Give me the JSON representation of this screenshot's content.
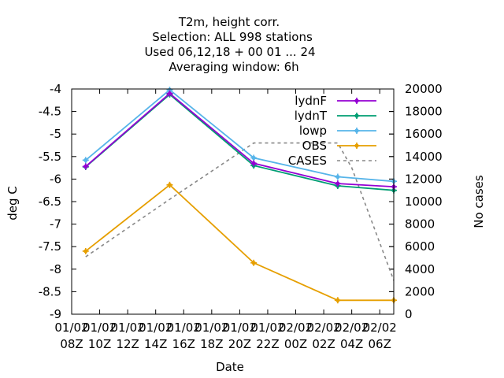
{
  "chart_data": {
    "type": "line",
    "title_lines": [
      "T2m, height corr.",
      "Selection: ALL    998 stations",
      "Used  06,12,18  + 00 01 ... 24",
      "Averaging window:  6h"
    ],
    "xlabel": "Date",
    "ylabel": "deg C",
    "y2label": "No cases",
    "x_ticks": [
      {
        "line1": "01/02",
        "line2": "08Z"
      },
      {
        "line1": "01/02",
        "line2": "10Z"
      },
      {
        "line1": "01/02",
        "line2": "12Z"
      },
      {
        "line1": "01/02",
        "line2": "14Z"
      },
      {
        "line1": "01/02",
        "line2": "16Z"
      },
      {
        "line1": "01/02",
        "line2": "18Z"
      },
      {
        "line1": "01/02",
        "line2": "20Z"
      },
      {
        "line1": "01/02",
        "line2": "22Z"
      },
      {
        "line1": "02/02",
        "line2": "00Z"
      },
      {
        "line1": "02/02",
        "line2": "02Z"
      },
      {
        "line1": "02/02",
        "line2": "04Z"
      },
      {
        "line1": "02/02",
        "line2": "06Z"
      }
    ],
    "xlim_hours": [
      0,
      23
    ],
    "ylim": [
      -9,
      -4
    ],
    "y_ticks": [
      "-9",
      "-8.5",
      "-8",
      "-7.5",
      "-7",
      "-6.5",
      "-6",
      "-5.5",
      "-5",
      "-4.5",
      "-4"
    ],
    "y2lim": [
      0,
      20000
    ],
    "y2_ticks": [
      "0",
      "2000",
      "4000",
      "6000",
      "8000",
      "10000",
      "12000",
      "14000",
      "16000",
      "18000",
      "20000"
    ],
    "legend_position": "top-right",
    "series": [
      {
        "name": "lydnF",
        "color": "#9400d3",
        "axis": "y1",
        "style": "line-points",
        "x": [
          "01/02 09Z",
          "01/02 15Z",
          "01/02 21Z",
          "02/02 03Z",
          "02/02 06Z"
        ],
        "x_hours": [
          1,
          7,
          13,
          19,
          23
        ],
        "values": [
          -5.72,
          -4.1,
          -5.65,
          -6.1,
          -6.17
        ]
      },
      {
        "name": "lydnT",
        "color": "#009e73",
        "axis": "y1",
        "style": "line-points",
        "x": [
          "01/02 09Z",
          "01/02 15Z",
          "01/02 21Z",
          "02/02 03Z",
          "02/02 06Z"
        ],
        "x_hours": [
          1,
          7,
          13,
          19,
          23
        ],
        "values": [
          -5.73,
          -4.12,
          -5.7,
          -6.15,
          -6.25
        ]
      },
      {
        "name": "lowp",
        "color": "#56b4e9",
        "axis": "y1",
        "style": "line-points",
        "x": [
          "01/02 09Z",
          "01/02 15Z",
          "01/02 21Z",
          "02/02 03Z",
          "02/02 06Z"
        ],
        "x_hours": [
          1,
          7,
          13,
          19,
          23
        ],
        "values": [
          -5.58,
          -4.02,
          -5.53,
          -5.95,
          -6.05
        ]
      },
      {
        "name": "OBS",
        "color": "#e69f00",
        "axis": "y1",
        "style": "line-points",
        "x": [
          "01/02 09Z",
          "01/02 15Z",
          "01/02 21Z",
          "02/02 03Z",
          "02/02 06Z"
        ],
        "x_hours": [
          1,
          7,
          13,
          19,
          23
        ],
        "values": [
          -7.6,
          -6.13,
          -7.86,
          -8.69,
          -8.69
        ]
      },
      {
        "name": "CASES",
        "color": "#888888",
        "axis": "y2",
        "style": "dashed",
        "x": [
          "01/02 09Z",
          "01/02 15Z",
          "01/02 21Z",
          "02/02 03Z",
          "02/02 04Z",
          "02/02 06Z"
        ],
        "x_hours": [
          1,
          7,
          13,
          19,
          20,
          23
        ],
        "values": [
          5100,
          10200,
          15200,
          15200,
          13000,
          3000
        ]
      }
    ]
  }
}
